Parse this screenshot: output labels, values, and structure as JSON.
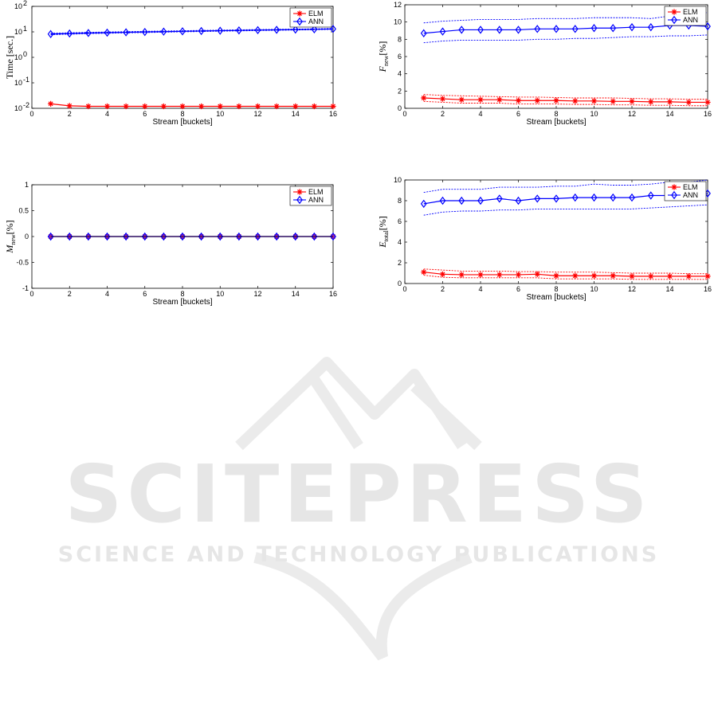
{
  "watermark": {
    "brand": "SCITEPRESS",
    "tagline": "SCIENCE AND TECHNOLOGY PUBLICATIONS"
  },
  "colors": {
    "elm": "#ff0000",
    "ann": "#0000ff",
    "axis": "#000000",
    "mpoint_fill": "#a020a0"
  },
  "chart_data": [
    {
      "id": "time",
      "type": "line",
      "yscale": "log",
      "xlabel": "Stream [buckets]",
      "ylabel": "Time [sec.]",
      "xlim": [
        0,
        16
      ],
      "ylim": [
        0.01,
        100
      ],
      "xticks": [
        0,
        2,
        4,
        6,
        8,
        10,
        12,
        14,
        16
      ],
      "yticks": [
        0.01,
        0.1,
        1,
        10,
        100
      ],
      "ytick_labels": [
        {
          "base": "10",
          "exp": "-2"
        },
        {
          "base": "10",
          "exp": "-1"
        },
        {
          "base": "10",
          "exp": "0"
        },
        {
          "base": "10",
          "exp": "1"
        },
        {
          "base": "10",
          "exp": "2"
        }
      ],
      "legend_position": "top-right",
      "x": [
        1,
        2,
        3,
        4,
        5,
        6,
        7,
        8,
        9,
        10,
        11,
        12,
        13,
        14,
        15,
        16
      ],
      "series": [
        {
          "name": "ELM",
          "marker": "star",
          "values": [
            0.015,
            0.0125,
            0.012,
            0.012,
            0.012,
            0.012,
            0.012,
            0.012,
            0.012,
            0.012,
            0.012,
            0.012,
            0.012,
            0.012,
            0.012,
            0.012
          ]
        },
        {
          "name": "ANN",
          "marker": "diamond",
          "values": [
            8.2,
            8.6,
            9.0,
            9.3,
            9.6,
            9.9,
            10.2,
            10.5,
            10.8,
            11.1,
            11.4,
            11.7,
            12.0,
            12.3,
            12.6,
            13.0
          ],
          "band_upper": [
            8.8,
            9.2,
            9.6,
            9.9,
            10.2,
            10.5,
            10.8,
            11.1,
            11.4,
            11.7,
            12.0,
            12.3,
            12.6,
            12.9,
            13.2,
            13.6
          ],
          "band_lower": [
            7.7,
            8.1,
            8.5,
            8.8,
            9.1,
            9.4,
            9.7,
            10.0,
            10.3,
            10.6,
            10.9,
            11.2,
            11.5,
            11.8,
            12.1,
            12.5
          ]
        }
      ]
    },
    {
      "id": "fnew",
      "type": "line",
      "xlabel": "Stream [buckets]",
      "ylabel": {
        "main": "F",
        "sub": "new",
        "unit": "[%]"
      },
      "xlim": [
        0,
        16
      ],
      "ylim": [
        0,
        12
      ],
      "xticks": [
        0,
        2,
        4,
        6,
        8,
        10,
        12,
        14,
        16
      ],
      "yticks": [
        0,
        2,
        4,
        6,
        8,
        10,
        12
      ],
      "legend_position": "top-right",
      "x": [
        1,
        2,
        3,
        4,
        5,
        6,
        7,
        8,
        9,
        10,
        11,
        12,
        13,
        14,
        15,
        16
      ],
      "series": [
        {
          "name": "ELM",
          "marker": "star",
          "values": [
            1.2,
            1.1,
            1.0,
            1.0,
            1.0,
            0.9,
            0.9,
            0.9,
            0.85,
            0.85,
            0.8,
            0.8,
            0.75,
            0.75,
            0.7,
            0.7
          ],
          "band_upper": [
            1.6,
            1.5,
            1.45,
            1.4,
            1.35,
            1.3,
            1.3,
            1.25,
            1.2,
            1.2,
            1.2,
            1.15,
            1.1,
            1.1,
            1.05,
            1.05
          ],
          "band_lower": [
            0.8,
            0.7,
            0.6,
            0.6,
            0.6,
            0.5,
            0.5,
            0.5,
            0.45,
            0.45,
            0.4,
            0.4,
            0.35,
            0.35,
            0.3,
            0.3
          ]
        },
        {
          "name": "ANN",
          "marker": "diamond",
          "values": [
            8.7,
            8.9,
            9.1,
            9.1,
            9.1,
            9.1,
            9.2,
            9.2,
            9.2,
            9.3,
            9.3,
            9.4,
            9.4,
            9.6,
            9.6,
            9.5
          ],
          "band_upper": [
            9.9,
            10.1,
            10.2,
            10.3,
            10.3,
            10.3,
            10.4,
            10.4,
            10.4,
            10.5,
            10.5,
            10.5,
            10.4,
            10.7,
            10.9,
            11.1
          ],
          "band_lower": [
            7.6,
            7.8,
            7.9,
            7.9,
            7.9,
            7.9,
            8.0,
            8.0,
            8.1,
            8.1,
            8.2,
            8.3,
            8.3,
            8.4,
            8.4,
            8.5
          ]
        }
      ]
    },
    {
      "id": "mnew",
      "type": "line",
      "xlabel": "Stream [buckets]",
      "ylabel": {
        "main": "M",
        "sub": "new",
        "unit": "[%]"
      },
      "xlim": [
        0,
        16
      ],
      "ylim": [
        -1,
        1
      ],
      "xticks": [
        0,
        2,
        4,
        6,
        8,
        10,
        12,
        14,
        16
      ],
      "yticks": [
        -1,
        -0.5,
        0,
        0.5,
        1
      ],
      "legend_position": "top-right",
      "x": [
        1,
        2,
        3,
        4,
        5,
        6,
        7,
        8,
        9,
        10,
        11,
        12,
        13,
        14,
        15,
        16
      ],
      "series": [
        {
          "name": "ELM",
          "marker": "star",
          "values": [
            0,
            0,
            0,
            0,
            0,
            0,
            0,
            0,
            0,
            0,
            0,
            0,
            0,
            0,
            0,
            0
          ]
        },
        {
          "name": "ANN",
          "marker": "diamond",
          "values": [
            0,
            0,
            0,
            0,
            0,
            0,
            0,
            0,
            0,
            0,
            0,
            0,
            0,
            0,
            0,
            0
          ]
        }
      ]
    },
    {
      "id": "etotal",
      "type": "line",
      "xlabel": "Stream [buckets]",
      "ylabel": {
        "main": "E",
        "sub": "total",
        "unit": "[%]"
      },
      "xlim": [
        0,
        16
      ],
      "ylim": [
        0,
        10
      ],
      "xticks": [
        0,
        2,
        4,
        6,
        8,
        10,
        12,
        14,
        16
      ],
      "yticks": [
        0,
        2,
        4,
        6,
        8,
        10
      ],
      "legend_position": "top-right",
      "x": [
        1,
        2,
        3,
        4,
        5,
        6,
        7,
        8,
        9,
        10,
        11,
        12,
        13,
        14,
        15,
        16
      ],
      "series": [
        {
          "name": "ELM",
          "marker": "star",
          "values": [
            1.1,
            0.9,
            0.85,
            0.85,
            0.85,
            0.85,
            0.9,
            0.75,
            0.75,
            0.75,
            0.75,
            0.7,
            0.7,
            0.7,
            0.7,
            0.7
          ],
          "band_upper": [
            1.4,
            1.3,
            1.2,
            1.2,
            1.2,
            1.15,
            1.15,
            1.1,
            1.1,
            1.1,
            1.05,
            1.0,
            1.0,
            1.0,
            0.95,
            0.95
          ],
          "band_lower": [
            0.8,
            0.6,
            0.55,
            0.55,
            0.55,
            0.55,
            0.55,
            0.45,
            0.45,
            0.45,
            0.45,
            0.4,
            0.4,
            0.4,
            0.4,
            0.4
          ]
        },
        {
          "name": "ANN",
          "marker": "diamond",
          "values": [
            7.7,
            8.0,
            8.0,
            8.0,
            8.2,
            8.0,
            8.2,
            8.2,
            8.3,
            8.3,
            8.3,
            8.3,
            8.5,
            8.5,
            8.4,
            8.7
          ],
          "band_upper": [
            8.8,
            9.1,
            9.1,
            9.1,
            9.3,
            9.3,
            9.3,
            9.4,
            9.4,
            9.6,
            9.5,
            9.5,
            9.6,
            9.8,
            9.8,
            10.0
          ],
          "band_lower": [
            6.6,
            6.9,
            7.0,
            7.0,
            7.1,
            7.1,
            7.2,
            7.2,
            7.2,
            7.2,
            7.2,
            7.2,
            7.3,
            7.4,
            7.5,
            7.6
          ]
        }
      ]
    }
  ]
}
